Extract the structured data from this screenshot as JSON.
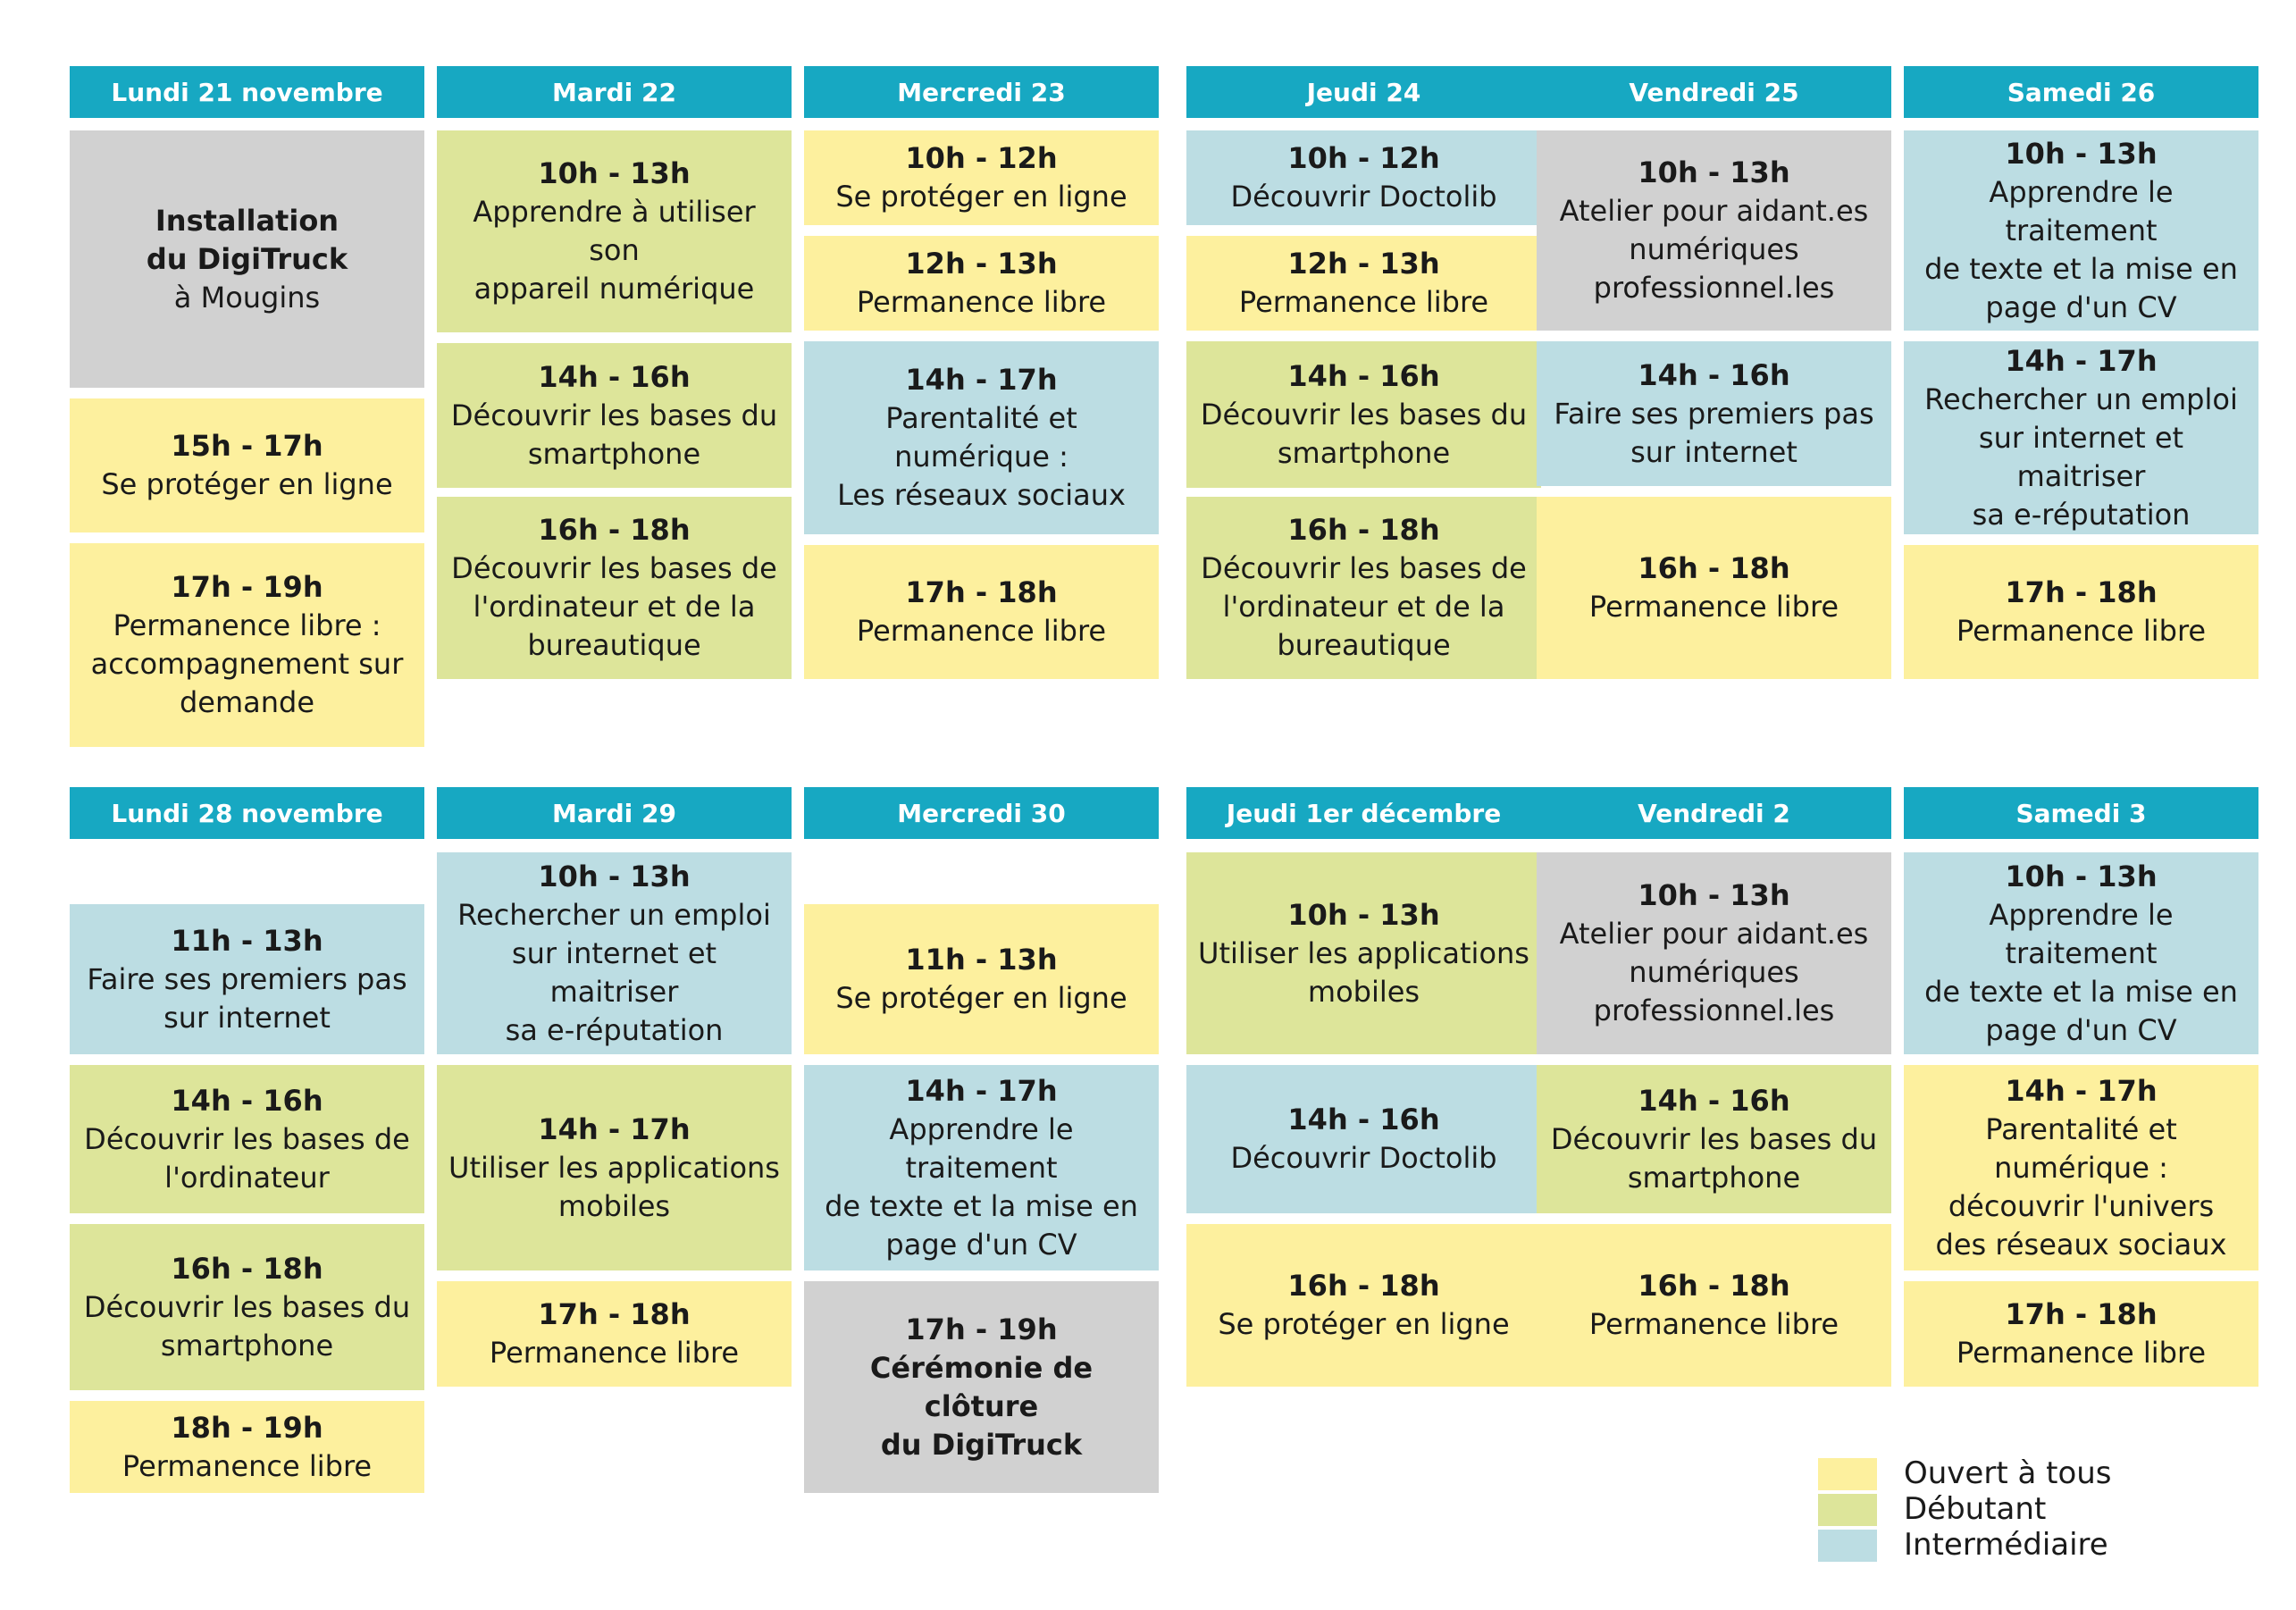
{
  "colors": {
    "header": "#17a8c2",
    "ouvert_a_tous": "#fdf09e",
    "debutant": "#dde59a",
    "intermediaire": "#bcdde3",
    "special": "#d1d1d1"
  },
  "weeks": [
    {
      "days": [
        {
          "header": "Lundi 21 novembre",
          "slots": [
            {
              "time": "",
              "title": "Installation\ndu DigiTruck",
              "subtitle": "à Mougins",
              "level": "special"
            },
            {
              "time": "15h - 17h",
              "title": "Se protéger en ligne",
              "level": "ouvert_a_tous"
            },
            {
              "time": "17h - 19h",
              "title": "Permanence libre :\naccompagnement sur\ndemande",
              "level": "ouvert_a_tous"
            }
          ]
        },
        {
          "header": "Mardi 22",
          "slots": [
            {
              "time": "10h - 13h",
              "title": "Apprendre à utiliser son\nappareil numérique",
              "level": "debutant"
            },
            {
              "time": "14h - 16h",
              "title": "Découvrir les bases du\nsmartphone",
              "level": "debutant"
            },
            {
              "time": "16h - 18h",
              "title": "Découvrir les bases de\nl'ordinateur et de la\nbureautique",
              "level": "debutant"
            }
          ]
        },
        {
          "header": "Mercredi 23",
          "slots": [
            {
              "time": "10h - 12h",
              "title": "Se protéger en ligne",
              "level": "ouvert_a_tous"
            },
            {
              "time": "12h - 13h",
              "title": "Permanence libre",
              "level": "ouvert_a_tous"
            },
            {
              "time": "14h - 17h",
              "title": "Parentalité et numérique :\nLes réseaux sociaux",
              "level": "intermediaire"
            },
            {
              "time": "17h - 18h",
              "title": "Permanence libre",
              "level": "ouvert_a_tous"
            }
          ]
        },
        {
          "header": "Jeudi 24",
          "slots": [
            {
              "time": "10h - 12h",
              "title": "Découvrir Doctolib",
              "level": "intermediaire"
            },
            {
              "time": "12h - 13h",
              "title": "Permanence libre",
              "level": "ouvert_a_tous"
            },
            {
              "time": "14h - 16h",
              "title": "Découvrir les bases du\nsmartphone",
              "level": "debutant"
            },
            {
              "time": "16h - 18h",
              "title": "Découvrir les bases de\nl'ordinateur et de la\nbureautique",
              "level": "debutant"
            }
          ]
        },
        {
          "header": "Vendredi 25",
          "slots": [
            {
              "time": "10h - 13h",
              "title": "Atelier pour aidant.es\nnumériques\nprofessionnel.les",
              "level": "special"
            },
            {
              "time": "14h - 16h",
              "title": "Faire ses premiers pas\nsur internet",
              "level": "intermediaire"
            },
            {
              "time": "16h - 18h",
              "title": "Permanence libre",
              "level": "ouvert_a_tous"
            }
          ]
        },
        {
          "header": "Samedi 26",
          "slots": [
            {
              "time": "10h - 13h",
              "title": "Apprendre le traitement\nde texte et la mise en\npage d'un CV",
              "level": "intermediaire"
            },
            {
              "time": "14h - 17h",
              "title": "Rechercher un emploi\nsur internet et maitriser\nsa e-réputation",
              "level": "intermediaire"
            },
            {
              "time": "17h - 18h",
              "title": "Permanence libre",
              "level": "ouvert_a_tous"
            }
          ]
        }
      ]
    },
    {
      "days": [
        {
          "header": "Lundi 28 novembre",
          "slots": [
            {
              "time": "11h - 13h",
              "title": "Faire ses premiers pas\nsur internet",
              "level": "intermediaire"
            },
            {
              "time": "14h - 16h",
              "title": "Découvrir les bases de\nl'ordinateur",
              "level": "debutant"
            },
            {
              "time": "16h - 18h",
              "title": "Découvrir les bases du\nsmartphone",
              "level": "debutant"
            },
            {
              "time": "18h - 19h",
              "title": "Permanence libre",
              "level": "ouvert_a_tous"
            }
          ]
        },
        {
          "header": "Mardi 29",
          "slots": [
            {
              "time": "10h - 13h",
              "title": "Rechercher un emploi\nsur internet et maitriser\nsa e-réputation",
              "level": "intermediaire"
            },
            {
              "time": "14h - 17h",
              "title": "Utiliser les applications\nmobiles",
              "level": "debutant"
            },
            {
              "time": "17h - 18h",
              "title": "Permanence libre",
              "level": "ouvert_a_tous"
            }
          ]
        },
        {
          "header": "Mercredi 30",
          "slots": [
            {
              "time": "11h - 13h",
              "title": "Se protéger en ligne",
              "level": "ouvert_a_tous"
            },
            {
              "time": "14h - 17h",
              "title": "Apprendre le traitement\nde texte et la mise en\npage d'un CV",
              "level": "intermediaire"
            },
            {
              "time": "17h - 19h",
              "title": "Cérémonie de clôture\ndu DigiTruck",
              "level": "special"
            }
          ]
        },
        {
          "header": "Jeudi 1er décembre",
          "slots": [
            {
              "time": "10h - 13h",
              "title": "Utiliser les applications\nmobiles",
              "level": "debutant"
            },
            {
              "time": "14h - 16h",
              "title": "Découvrir Doctolib",
              "level": "intermediaire"
            },
            {
              "time": "16h - 18h",
              "title": "Se protéger en ligne",
              "level": "ouvert_a_tous"
            }
          ]
        },
        {
          "header": "Vendredi 2",
          "slots": [
            {
              "time": "10h - 13h",
              "title": "Atelier pour aidant.es\nnumériques\nprofessionnel.les",
              "level": "special"
            },
            {
              "time": "14h - 16h",
              "title": "Découvrir les bases du\nsmartphone",
              "level": "debutant"
            },
            {
              "time": "16h - 18h",
              "title": "Permanence libre",
              "level": "ouvert_a_tous"
            }
          ]
        },
        {
          "header": "Samedi 3",
          "slots": [
            {
              "time": "10h - 13h",
              "title": "Apprendre le traitement\nde texte et la mise en\npage d'un CV",
              "level": "intermediaire"
            },
            {
              "time": "14h - 17h",
              "title": "Parentalité et numérique :\ndécouvrir l'univers\ndes réseaux sociaux",
              "level": "ouvert_a_tous"
            },
            {
              "time": "17h - 18h",
              "title": "Permanence libre",
              "level": "ouvert_a_tous"
            }
          ]
        }
      ]
    }
  ],
  "legend": [
    {
      "label": "Ouvert à tous",
      "level": "ouvert_a_tous"
    },
    {
      "label": "Débutant",
      "level": "debutant"
    },
    {
      "label": "Intermédiaire",
      "level": "intermediaire"
    }
  ]
}
